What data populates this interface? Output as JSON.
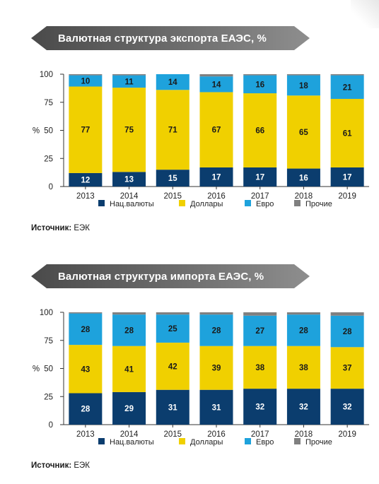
{
  "colors": {
    "nat": "#0b3d6e",
    "usd": "#f0d000",
    "eur": "#1ea2dc",
    "other": "#808080",
    "banner": "#5a5a5a"
  },
  "source": {
    "label": "Источник:",
    "value": "ЕЭК"
  },
  "chart_data": [
    {
      "type": "bar",
      "stacked": true,
      "title": "Валютная структура экспорта ЕАЭС, %",
      "ylabel": "%",
      "ylim": [
        0,
        100
      ],
      "yticks": [
        "0",
        "25",
        "50",
        "75",
        "100"
      ],
      "categories": [
        "2013",
        "2014",
        "2015",
        "2016",
        "2017",
        "2018",
        "2019"
      ],
      "legend_position": "bottom",
      "series": [
        {
          "name": "Нац.валюты",
          "color_key": "nat",
          "values": [
            12,
            13,
            15,
            17,
            17,
            16,
            17
          ],
          "labels": [
            "12",
            "13",
            "15",
            "17",
            "17",
            "16",
            "17"
          ]
        },
        {
          "name": "Доллары",
          "color_key": "usd",
          "values": [
            77,
            75,
            71,
            67,
            66,
            65,
            61
          ],
          "labels": [
            "77",
            "75",
            "71",
            "67",
            "66",
            "65",
            "61"
          ]
        },
        {
          "name": "Евро",
          "color_key": "eur",
          "values": [
            10,
            11,
            14,
            14,
            16,
            18,
            21
          ],
          "labels": [
            "10",
            "11",
            "14",
            "14",
            "16",
            "18",
            "21"
          ]
        },
        {
          "name": "Прочие",
          "color_key": "other",
          "values": [
            1,
            1,
            0,
            2,
            1,
            1,
            1
          ],
          "labels": [
            "",
            "",
            "",
            "",
            "",
            "",
            ""
          ]
        }
      ]
    },
    {
      "type": "bar",
      "stacked": true,
      "title": "Валютная структура импорта ЕАЭС, %",
      "ylabel": "%",
      "ylim": [
        0,
        100
      ],
      "yticks": [
        "0",
        "25",
        "50",
        "75",
        "100"
      ],
      "categories": [
        "2013",
        "2014",
        "2015",
        "2016",
        "2017",
        "2018",
        "2019"
      ],
      "legend_position": "bottom",
      "series": [
        {
          "name": "Нац.валюты",
          "color_key": "nat",
          "values": [
            28,
            29,
            31,
            31,
            32,
            32,
            32
          ],
          "labels": [
            "28",
            "29",
            "31",
            "31",
            "32",
            "32",
            "32"
          ]
        },
        {
          "name": "Доллары",
          "color_key": "usd",
          "values": [
            43,
            41,
            42,
            39,
            38,
            38,
            37
          ],
          "labels": [
            "43",
            "41",
            "42",
            "39",
            "38",
            "38",
            "37"
          ]
        },
        {
          "name": "Евро",
          "color_key": "eur",
          "values": [
            28,
            28,
            25,
            28,
            27,
            28,
            28
          ],
          "labels": [
            "28",
            "28",
            "25",
            "28",
            "27",
            "28",
            "28"
          ]
        },
        {
          "name": "Прочие",
          "color_key": "other",
          "values": [
            1,
            2,
            2,
            2,
            3,
            2,
            3
          ],
          "labels": [
            "",
            "",
            "",
            "",
            "",
            "",
            ""
          ]
        }
      ]
    }
  ]
}
